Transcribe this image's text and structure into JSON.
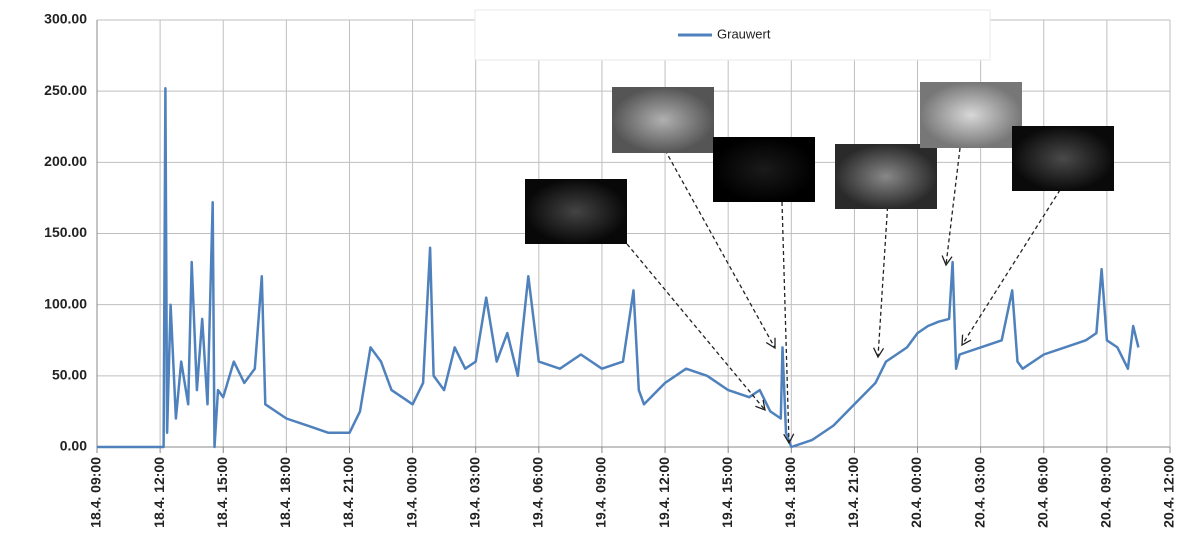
{
  "chart_data": {
    "type": "line",
    "xlim": [
      "18.4. 09:00",
      "20.4. 12:00"
    ],
    "xticks": [
      "18.4. 09:00",
      "18.4. 12:00",
      "18.4. 15:00",
      "18.4. 18:00",
      "18.4. 21:00",
      "19.4. 00:00",
      "19.4. 03:00",
      "19.4. 06:00",
      "19.4. 09:00",
      "19.4. 12:00",
      "19.4. 15:00",
      "19.4. 18:00",
      "19.4. 21:00",
      "20.4. 00:00",
      "20.4. 03:00",
      "20.4. 06:00",
      "20.4. 09:00",
      "20.4. 12:00"
    ],
    "ylim": [
      0,
      300
    ],
    "yticks": [
      {
        "value": 0,
        "label": "0.00"
      },
      {
        "value": 50,
        "label": "50.00"
      },
      {
        "value": 100,
        "label": "100.00"
      },
      {
        "value": 150,
        "label": "150.00"
      },
      {
        "value": 200,
        "label": "200.00"
      },
      {
        "value": 250,
        "label": "250.00"
      },
      {
        "value": 300,
        "label": "300.00"
      }
    ],
    "grid": true,
    "legend": "top",
    "x": [
      "18.4. 09:00",
      "18.4. 12:00",
      "18.4. 12:10",
      "18.4. 12:15",
      "18.4. 12:20",
      "18.4. 12:30",
      "18.4. 12:45",
      "18.4. 13:00",
      "18.4. 13:20",
      "18.4. 13:30",
      "18.4. 13:45",
      "18.4. 14:00",
      "18.4. 14:15",
      "18.4. 14:30",
      "18.4. 14:35",
      "18.4. 14:45",
      "18.4. 15:00",
      "18.4. 15:30",
      "18.4. 16:00",
      "18.4. 16:30",
      "18.4. 16:50",
      "18.4. 17:00",
      "18.4. 17:30",
      "18.4. 18:00",
      "18.4. 19:00",
      "18.4. 20:00",
      "18.4. 21:00",
      "18.4. 21:30",
      "18.4. 22:00",
      "18.4. 22:30",
      "18.4. 23:00",
      "18.4. 23:30",
      "19.4. 00:00",
      "19.4. 00:30",
      "19.4. 00:50",
      "19.4. 01:00",
      "19.4. 01:30",
      "19.4. 02:00",
      "19.4. 02:30",
      "19.4. 03:00",
      "19.4. 03:30",
      "19.4. 04:00",
      "19.4. 04:30",
      "19.4. 05:00",
      "19.4. 05:30",
      "19.4. 06:00",
      "19.4. 07:00",
      "19.4. 08:00",
      "19.4. 09:00",
      "19.4. 10:00",
      "19.4. 10:30",
      "19.4. 10:45",
      "19.4. 11:00",
      "19.4. 12:00",
      "19.4. 13:00",
      "19.4. 14:00",
      "19.4. 15:00",
      "19.4. 16:00",
      "19.4. 16:30",
      "19.4. 17:00",
      "19.4. 17:30",
      "19.4. 17:35",
      "19.4. 17:45",
      "19.4. 18:00",
      "19.4. 19:00",
      "19.4. 20:00",
      "19.4. 21:00",
      "19.4. 22:00",
      "19.4. 22:30",
      "19.4. 23:00",
      "19.4. 23:30",
      "20.4. 00:00",
      "20.4. 00:30",
      "20.4. 01:00",
      "20.4. 01:30",
      "20.4. 01:40",
      "20.4. 01:50",
      "20.4. 02:00",
      "20.4. 03:00",
      "20.4. 04:00",
      "20.4. 04:30",
      "20.4. 04:45",
      "20.4. 05:00",
      "20.4. 06:00",
      "20.4. 07:00",
      "20.4. 08:00",
      "20.4. 08:30",
      "20.4. 08:45",
      "20.4. 09:00",
      "20.4. 09:30",
      "20.4. 10:00",
      "20.4. 10:15",
      "20.4. 10:30"
    ],
    "series": [
      {
        "name": "Grauwert",
        "color": "#4f81bd",
        "values": [
          0,
          0,
          0,
          252,
          10,
          100,
          20,
          60,
          30,
          130,
          40,
          90,
          30,
          172,
          0,
          40,
          35,
          60,
          45,
          55,
          120,
          30,
          25,
          20,
          15,
          10,
          10,
          25,
          70,
          60,
          40,
          35,
          30,
          45,
          140,
          50,
          40,
          70,
          55,
          60,
          105,
          60,
          80,
          50,
          120,
          60,
          55,
          65,
          55,
          60,
          110,
          40,
          30,
          45,
          55,
          50,
          40,
          35,
          40,
          25,
          20,
          70,
          10,
          0,
          5,
          15,
          30,
          45,
          60,
          65,
          70,
          80,
          85,
          88,
          90,
          130,
          55,
          65,
          70,
          75,
          110,
          60,
          55,
          65,
          70,
          75,
          80,
          125,
          75,
          70,
          55,
          85,
          70
        ]
      }
    ]
  }
}
